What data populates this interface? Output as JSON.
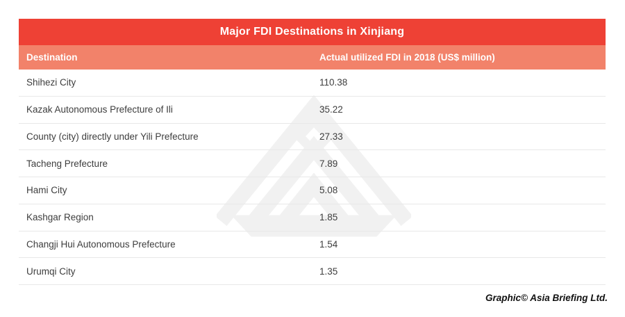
{
  "chart_data": {
    "type": "table",
    "title": "Major FDI Destinations in Xinjiang",
    "columns": [
      "Destination",
      "Actual utilized FDI in 2018 (US$ million)"
    ],
    "rows": [
      {
        "destination": "Shihezi City",
        "value": "110.38"
      },
      {
        "destination": "Kazak Autonomous Prefecture of Ili",
        "value": "35.22"
      },
      {
        "destination": "County (city) directly under Yili Prefecture",
        "value": "27.33"
      },
      {
        "destination": "Tacheng Prefecture",
        "value": "7.89"
      },
      {
        "destination": "Hami City",
        "value": "5.08"
      },
      {
        "destination": "Kashgar Region",
        "value": "1.85"
      },
      {
        "destination": "Changji Hui Autonomous Prefecture",
        "value": "1.54"
      },
      {
        "destination": "Urumqi City",
        "value": "1.35"
      }
    ],
    "value_unit": "US$ million",
    "year": "2018"
  },
  "footer": {
    "credit": "Graphic© Asia Briefing Ltd."
  },
  "watermark": {
    "label": "asia-briefing-logo"
  },
  "colors": {
    "header_red": "#ee4135",
    "subheader_salmon": "#f2826a",
    "row_text": "#3d3d3d",
    "divider": "#e8e8e8",
    "watermark_gray": "#f1f1f1",
    "credit_color": "#111111"
  }
}
